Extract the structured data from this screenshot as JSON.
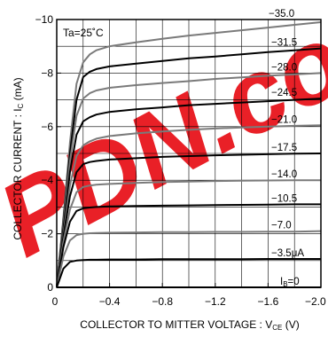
{
  "chart_data": {
    "type": "line",
    "annotation": "Ta=25˚C",
    "xlabel": "COLLECTOR TO  MITTER VOLTAGE : VCE (V)",
    "ylabel": "COLLECTOR CURRENT : IC (mA)",
    "xlim": [
      0,
      -2.0
    ],
    "ylim": [
      0,
      -10
    ],
    "x_ticks": [
      0,
      -0.4,
      -0.8,
      -1.2,
      -1.6,
      -2.0
    ],
    "x_tick_labels": [
      "0",
      "−0.4",
      "−0.8",
      "−1.2",
      "−1.6",
      "−2.0"
    ],
    "y_ticks": [
      0,
      -2,
      -4,
      -6,
      -8,
      -10
    ],
    "y_tick_labels": [
      "0",
      "−2",
      "−4",
      "−6",
      "−8",
      "−10"
    ],
    "grid": true,
    "series": [
      {
        "name": "−35.0",
        "color": "#7a7a7a",
        "x": [
          0,
          -0.05,
          -0.1,
          -0.15,
          -0.2,
          -0.25,
          -0.3,
          -0.4,
          -0.6,
          -0.8,
          -1.0,
          -1.2,
          -1.4,
          -1.6,
          -1.8,
          -2.0
        ],
        "y": [
          0,
          -2.6,
          -5.4,
          -7.6,
          -8.4,
          -8.7,
          -8.85,
          -9.0,
          -9.15,
          -9.28,
          -9.4,
          -9.5,
          -9.6,
          -9.7,
          -9.8,
          -9.9
        ]
      },
      {
        "name": "−31.5",
        "color": "#000000",
        "x": [
          0,
          -0.05,
          -0.1,
          -0.15,
          -0.2,
          -0.25,
          -0.3,
          -0.4,
          -0.6,
          -0.8,
          -1.0,
          -1.2,
          -1.4,
          -1.6,
          -1.8,
          -2.0
        ],
        "y": [
          0,
          -2.5,
          -5.0,
          -7.0,
          -7.85,
          -8.05,
          -8.15,
          -8.25,
          -8.35,
          -8.45,
          -8.55,
          -8.62,
          -8.7,
          -8.78,
          -8.85,
          -8.92
        ]
      },
      {
        "name": "−28.0",
        "color": "#7a7a7a",
        "x": [
          0,
          -0.05,
          -0.1,
          -0.15,
          -0.2,
          -0.25,
          -0.3,
          -0.4,
          -0.6,
          -0.8,
          -1.0,
          -1.2,
          -1.4,
          -1.6,
          -1.8,
          -2.0
        ],
        "y": [
          0,
          -2.4,
          -4.7,
          -6.4,
          -7.05,
          -7.25,
          -7.35,
          -7.45,
          -7.55,
          -7.63,
          -7.7,
          -7.78,
          -7.84,
          -7.9,
          -7.95,
          -8.0
        ]
      },
      {
        "name": "−24.5",
        "color": "#000000",
        "x": [
          0,
          -0.05,
          -0.1,
          -0.15,
          -0.2,
          -0.25,
          -0.3,
          -0.4,
          -0.6,
          -0.8,
          -1.0,
          -1.2,
          -1.4,
          -1.6,
          -1.8,
          -2.0
        ],
        "y": [
          0,
          -2.2,
          -4.3,
          -5.7,
          -6.2,
          -6.35,
          -6.45,
          -6.55,
          -6.65,
          -6.72,
          -6.8,
          -6.85,
          -6.9,
          -6.95,
          -7.0,
          -7.05
        ]
      },
      {
        "name": "−21.0",
        "color": "#7a7a7a",
        "x": [
          0,
          -0.05,
          -0.1,
          -0.15,
          -0.2,
          -0.25,
          -0.3,
          -0.4,
          -0.6,
          -0.8,
          -1.0,
          -1.2,
          -1.4,
          -1.6,
          -1.8,
          -2.0
        ],
        "y": [
          0,
          -2.0,
          -3.8,
          -4.9,
          -5.3,
          -5.45,
          -5.55,
          -5.65,
          -5.75,
          -5.82,
          -5.88,
          -5.93,
          -5.97,
          -6.0,
          -6.03,
          -6.05
        ]
      },
      {
        "name": "−17.5",
        "color": "#000000",
        "x": [
          0,
          -0.05,
          -0.1,
          -0.15,
          -0.2,
          -0.25,
          -0.3,
          -0.4,
          -0.6,
          -0.8,
          -1.0,
          -1.2,
          -1.4,
          -1.6,
          -1.8,
          -2.0
        ],
        "y": [
          0,
          -1.9,
          -3.4,
          -4.3,
          -4.6,
          -4.68,
          -4.72,
          -4.77,
          -4.82,
          -4.87,
          -4.9,
          -4.93,
          -4.95,
          -4.97,
          -4.99,
          -5.0
        ]
      },
      {
        "name": "−14.0",
        "color": "#7a7a7a",
        "x": [
          0,
          -0.05,
          -0.1,
          -0.15,
          -0.2,
          -0.25,
          -0.3,
          -0.4,
          -0.6,
          -0.8,
          -1.0,
          -1.2,
          -1.4,
          -1.6,
          -1.8,
          -2.0
        ],
        "y": [
          0,
          -1.7,
          -2.9,
          -3.55,
          -3.75,
          -3.8,
          -3.83,
          -3.86,
          -3.9,
          -3.93,
          -3.95,
          -3.97,
          -3.98,
          -3.99,
          -4.0,
          -4.0
        ]
      },
      {
        "name": "−10.5",
        "color": "#000000",
        "x": [
          0,
          -0.05,
          -0.1,
          -0.15,
          -0.2,
          -0.25,
          -0.3,
          -0.4,
          -0.6,
          -0.8,
          -1.0,
          -1.2,
          -1.4,
          -1.6,
          -1.8,
          -2.0
        ],
        "y": [
          0,
          -1.5,
          -2.45,
          -2.85,
          -2.95,
          -2.98,
          -3.0,
          -3.02,
          -3.04,
          -3.05,
          -3.06,
          -3.07,
          -3.08,
          -3.09,
          -3.1,
          -3.1
        ]
      },
      {
        "name": "−7.0",
        "color": "#7a7a7a",
        "x": [
          0,
          -0.05,
          -0.1,
          -0.15,
          -0.2,
          -0.25,
          -0.3,
          -0.4,
          -0.6,
          -0.8,
          -1.0,
          -1.2,
          -1.4,
          -1.6,
          -1.8,
          -2.0
        ],
        "y": [
          0,
          -1.15,
          -1.75,
          -1.95,
          -2.0,
          -2.02,
          -2.03,
          -2.04,
          -2.05,
          -2.06,
          -2.06,
          -2.07,
          -2.07,
          -2.08,
          -2.08,
          -2.1
        ]
      },
      {
        "name": "−3.5μA",
        "color": "#000000",
        "x": [
          0,
          -0.05,
          -0.1,
          -0.15,
          -0.2,
          -0.25,
          -0.3,
          -0.4,
          -0.6,
          -0.8,
          -1.0,
          -1.2,
          -1.4,
          -1.6,
          -1.8,
          -2.0
        ],
        "y": [
          0,
          -0.7,
          -0.95,
          -1.0,
          -1.02,
          -1.03,
          -1.03,
          -1.04,
          -1.04,
          -1.05,
          -1.05,
          -1.05,
          -1.05,
          -1.06,
          -1.06,
          -1.06
        ]
      },
      {
        "name": "IB=0",
        "color": "#000000",
        "x": [
          0,
          -2.0
        ],
        "y": [
          0,
          0
        ]
      }
    ]
  },
  "labels": {
    "annotation": "Ta=25˚C",
    "y_title_main": "COLLECTOR CURRENT : I",
    "y_title_sub": "C",
    "y_title_unit": " (mA)",
    "x_title_main": "COLLECTOR TO  MITTER VOLTAGE : V",
    "x_title_sub": "CE",
    "x_title_unit": " (V)",
    "ib_zero_main": "I",
    "ib_zero_sub": "B",
    "ib_zero_val": "=0"
  },
  "watermark": {
    "text": "PDN.co",
    "color": "#e8141b"
  }
}
